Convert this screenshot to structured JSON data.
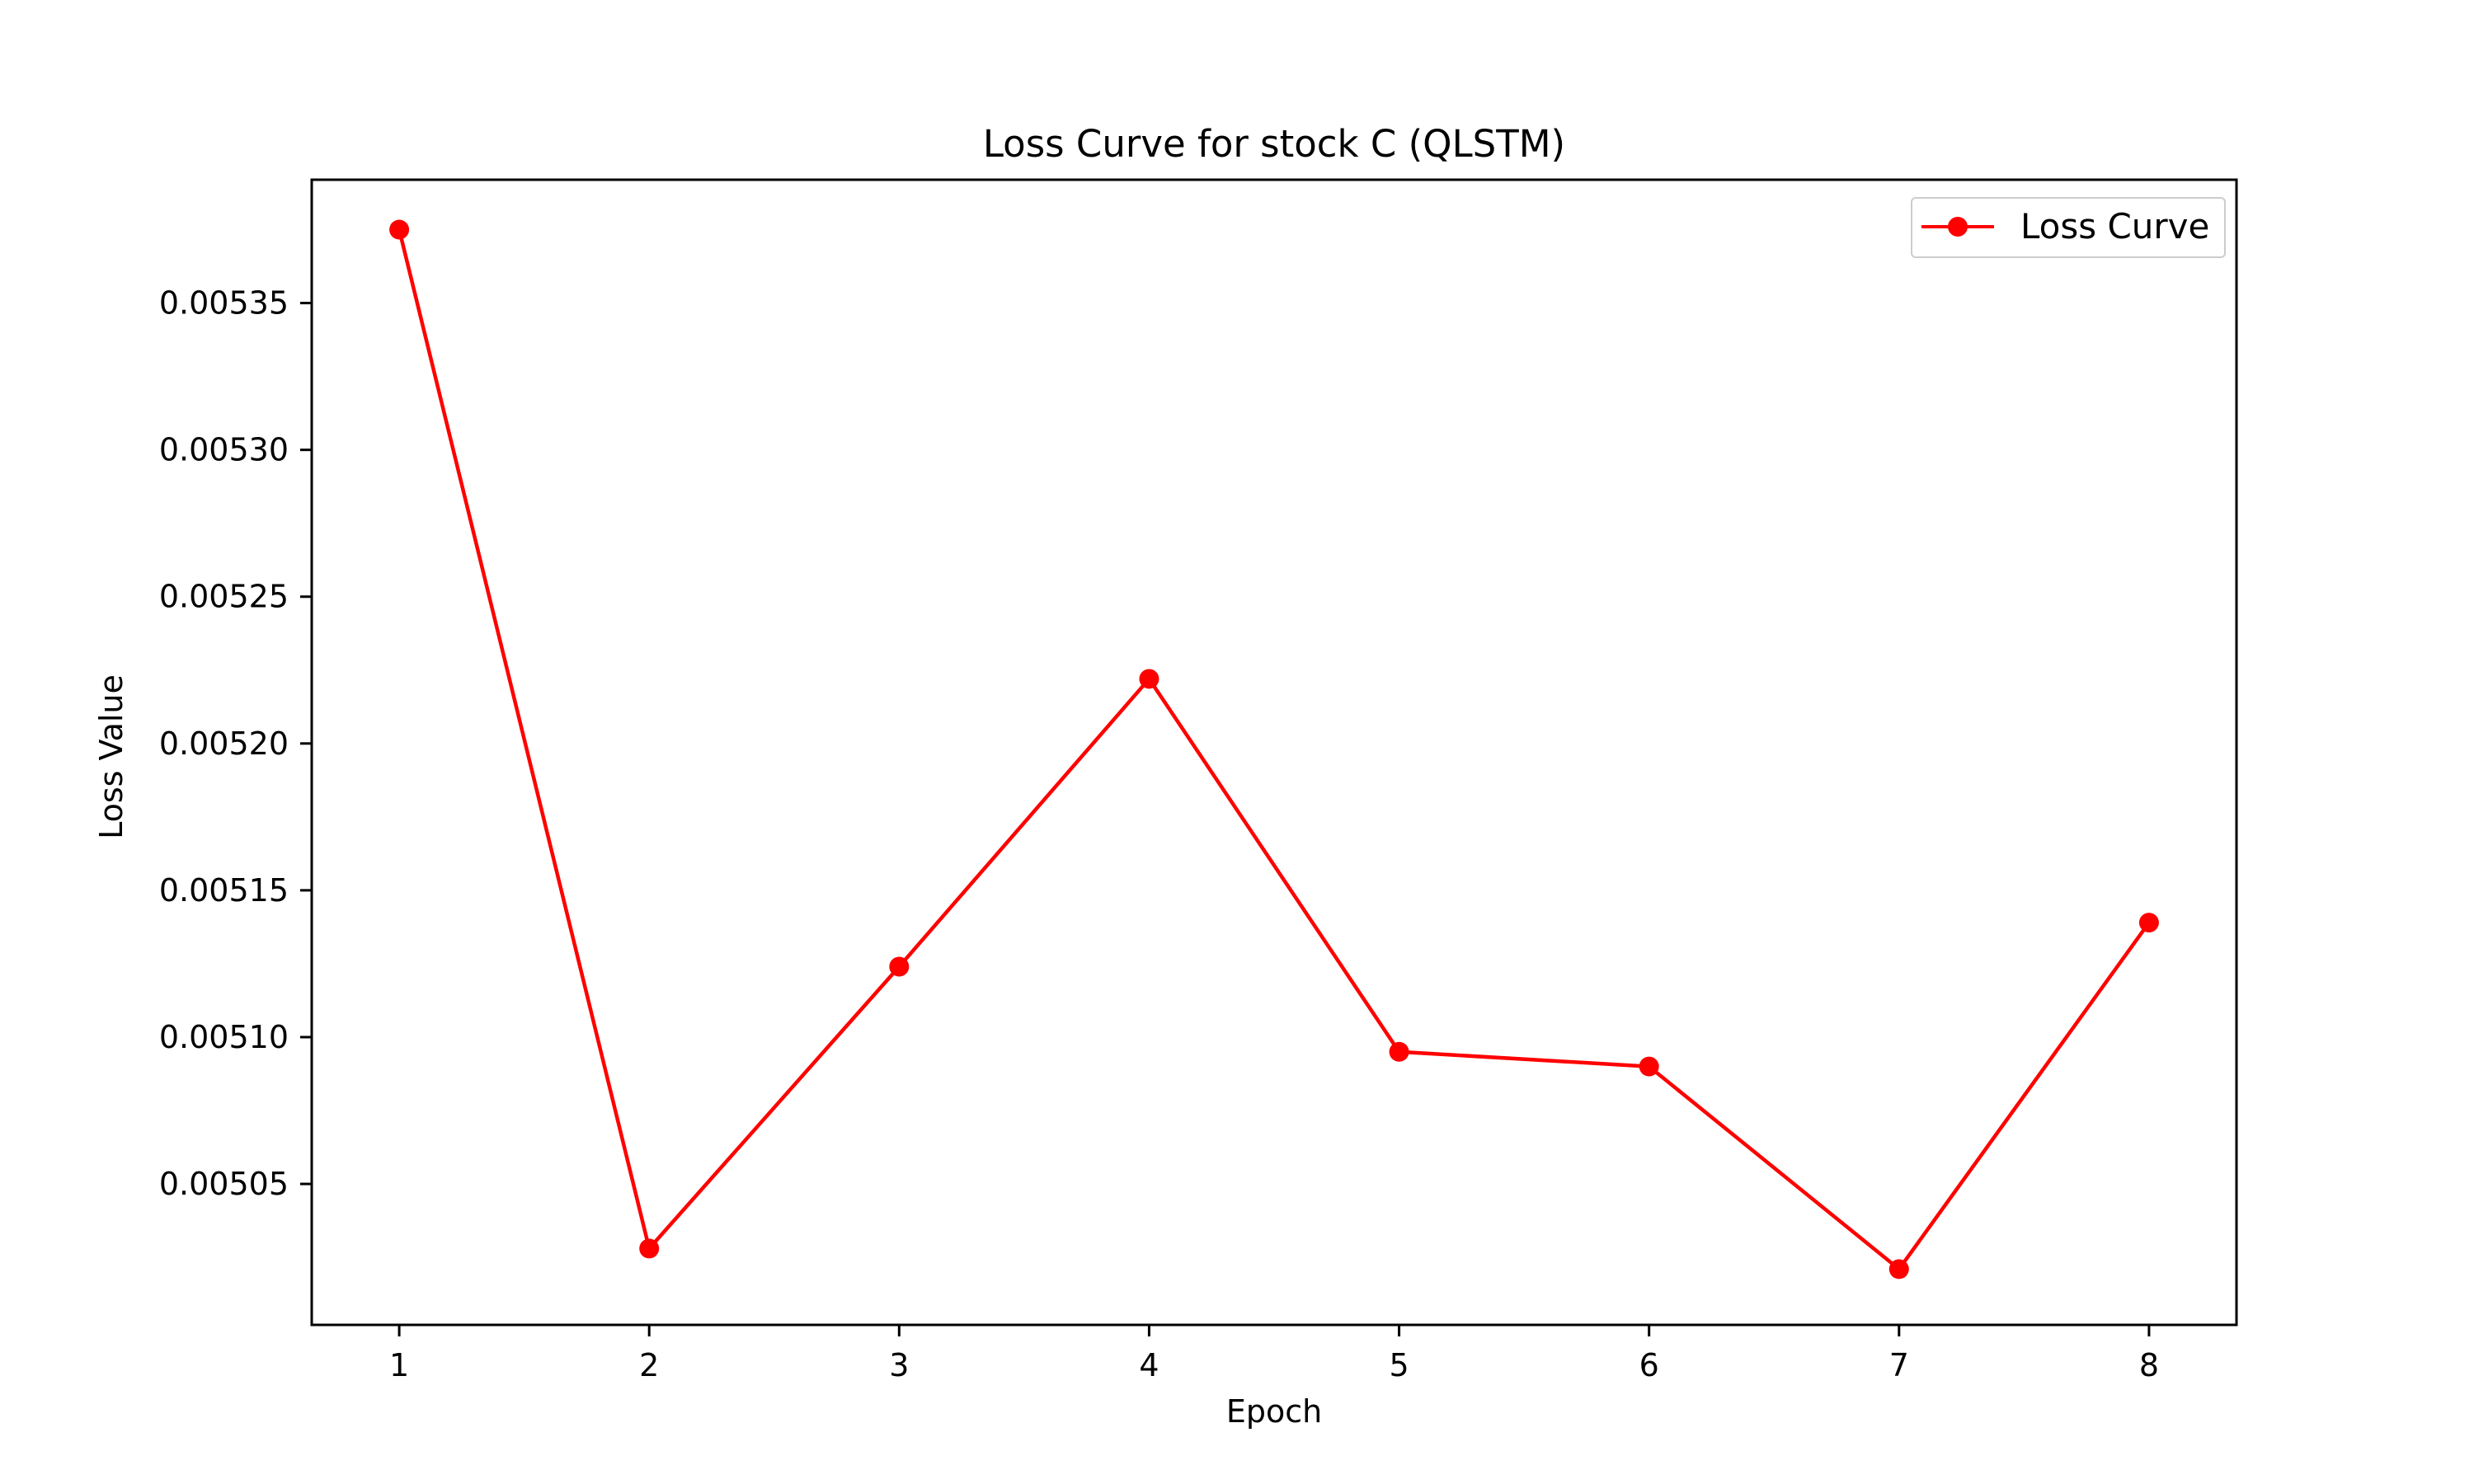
{
  "chart_data": {
    "type": "line",
    "title": "Loss Curve for stock C (QLSTM)",
    "xlabel": "Epoch",
    "ylabel": "Loss Value",
    "x": [
      1,
      2,
      3,
      4,
      5,
      6,
      7,
      8
    ],
    "xticks": [
      "1",
      "2",
      "3",
      "4",
      "5",
      "6",
      "7",
      "8"
    ],
    "xlim": [
      0.65,
      8.35
    ],
    "ylim": [
      0.005002,
      0.005392
    ],
    "yticks": [
      0.00505,
      0.0051,
      0.00515,
      0.0052,
      0.00525,
      0.0053,
      0.00535
    ],
    "ytick_labels": [
      "0.00505",
      "0.00510",
      "0.00515",
      "0.00520",
      "0.00525",
      "0.00530",
      "0.00535"
    ],
    "series": [
      {
        "name": "Loss Curve",
        "color": "#ff0000",
        "marker": "circle",
        "values": [
          0.005375,
          0.005028,
          0.005124,
          0.005222,
          0.005095,
          0.00509,
          0.005021,
          0.005139
        ]
      }
    ],
    "legend": "top-right",
    "grid": false
  }
}
